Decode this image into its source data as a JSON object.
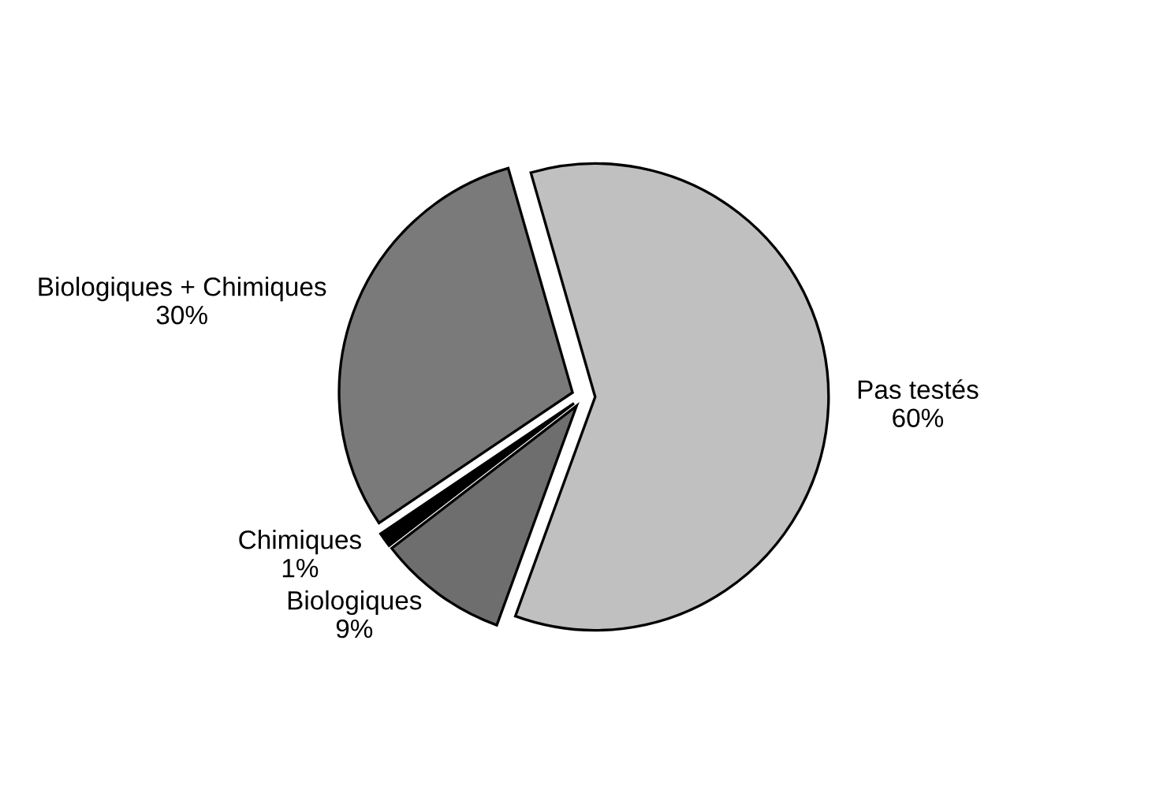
{
  "chart_data": {
    "type": "pie",
    "categories": [
      "Pas testés",
      "Biologiques",
      "Chimiques",
      "Biologiques + Chimiques"
    ],
    "values": [
      60,
      9,
      1,
      30
    ],
    "value_labels": [
      "60%",
      "9%",
      "1%",
      "30%"
    ],
    "colors": [
      "#c0c0c0",
      "#6e6e6e",
      "#000000",
      "#7a7a7a"
    ],
    "legend": false
  }
}
